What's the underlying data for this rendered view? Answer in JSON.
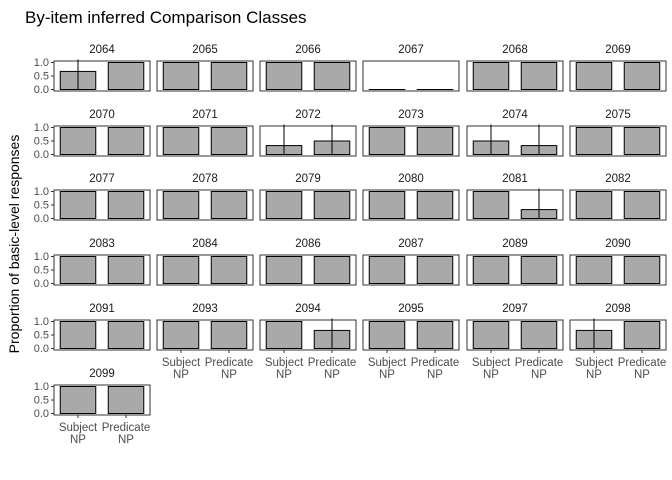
{
  "chart_data": {
    "type": "bar",
    "title": "By-item inferred Comparison Classes",
    "ylabel": "Proportion of basic-level responses",
    "categories": [
      "Subject NP",
      "Predicate NP"
    ],
    "category_lines": [
      [
        "Subject",
        "NP"
      ],
      [
        "Predicate",
        "NP"
      ]
    ],
    "ylim": [
      0,
      1
    ],
    "yticks": [
      0.0,
      0.5,
      1.0
    ],
    "ytick_labels": [
      "0.0",
      "0.5",
      "1.0"
    ],
    "grid": false,
    "bar_color": "#a9a9a9",
    "panels": [
      {
        "item": "2064",
        "values": [
          0.67,
          1.0
        ],
        "ci": [
          [
            0.0,
            1.0
          ],
          null
        ]
      },
      {
        "item": "2065",
        "values": [
          1.0,
          1.0
        ],
        "ci": [
          null,
          null
        ]
      },
      {
        "item": "2066",
        "values": [
          1.0,
          1.0
        ],
        "ci": [
          null,
          null
        ]
      },
      {
        "item": "2067",
        "values": [
          0.0,
          0.0
        ],
        "ci": [
          null,
          null
        ]
      },
      {
        "item": "2068",
        "values": [
          1.0,
          1.0
        ],
        "ci": [
          null,
          null
        ]
      },
      {
        "item": "2069",
        "values": [
          1.0,
          1.0
        ],
        "ci": [
          null,
          null
        ]
      },
      {
        "item": "2070",
        "values": [
          1.0,
          1.0
        ],
        "ci": [
          null,
          null
        ]
      },
      {
        "item": "2071",
        "values": [
          1.0,
          1.0
        ],
        "ci": [
          null,
          null
        ]
      },
      {
        "item": "2072",
        "values": [
          0.33,
          0.5
        ],
        "ci": [
          [
            0.0,
            1.0
          ],
          [
            0.0,
            1.0
          ]
        ]
      },
      {
        "item": "2073",
        "values": [
          1.0,
          1.0
        ],
        "ci": [
          null,
          null
        ]
      },
      {
        "item": "2074",
        "values": [
          0.5,
          0.33
        ],
        "ci": [
          [
            0.0,
            1.0
          ],
          [
            0.0,
            1.0
          ]
        ]
      },
      {
        "item": "2075",
        "values": [
          1.0,
          1.0
        ],
        "ci": [
          null,
          null
        ]
      },
      {
        "item": "2077",
        "values": [
          1.0,
          1.0
        ],
        "ci": [
          null,
          null
        ]
      },
      {
        "item": "2078",
        "values": [
          1.0,
          1.0
        ],
        "ci": [
          null,
          null
        ]
      },
      {
        "item": "2079",
        "values": [
          1.0,
          1.0
        ],
        "ci": [
          null,
          null
        ]
      },
      {
        "item": "2080",
        "values": [
          1.0,
          1.0
        ],
        "ci": [
          null,
          null
        ]
      },
      {
        "item": "2081",
        "values": [
          1.0,
          0.33
        ],
        "ci": [
          null,
          [
            0.0,
            1.0
          ]
        ]
      },
      {
        "item": "2082",
        "values": [
          1.0,
          1.0
        ],
        "ci": [
          null,
          null
        ]
      },
      {
        "item": "2083",
        "values": [
          1.0,
          1.0
        ],
        "ci": [
          null,
          null
        ]
      },
      {
        "item": "2084",
        "values": [
          1.0,
          1.0
        ],
        "ci": [
          null,
          null
        ]
      },
      {
        "item": "2086",
        "values": [
          1.0,
          1.0
        ],
        "ci": [
          null,
          null
        ]
      },
      {
        "item": "2087",
        "values": [
          1.0,
          1.0
        ],
        "ci": [
          null,
          null
        ]
      },
      {
        "item": "2089",
        "values": [
          1.0,
          1.0
        ],
        "ci": [
          null,
          null
        ]
      },
      {
        "item": "2090",
        "values": [
          1.0,
          1.0
        ],
        "ci": [
          null,
          null
        ]
      },
      {
        "item": "2091",
        "values": [
          1.0,
          1.0
        ],
        "ci": [
          null,
          null
        ]
      },
      {
        "item": "2093",
        "values": [
          1.0,
          1.0
        ],
        "ci": [
          null,
          null
        ]
      },
      {
        "item": "2094",
        "values": [
          1.0,
          0.67
        ],
        "ci": [
          null,
          [
            0.0,
            1.0
          ]
        ]
      },
      {
        "item": "2095",
        "values": [
          1.0,
          1.0
        ],
        "ci": [
          null,
          null
        ]
      },
      {
        "item": "2097",
        "values": [
          1.0,
          1.0
        ],
        "ci": [
          null,
          null
        ]
      },
      {
        "item": "2098",
        "values": [
          0.67,
          1.0
        ],
        "ci": [
          [
            0.0,
            1.0
          ],
          null
        ]
      },
      {
        "item": "2099",
        "values": [
          1.0,
          1.0
        ],
        "ci": [
          null,
          null
        ]
      }
    ],
    "panels_with_x_labels": [
      "2093",
      "2094",
      "2095",
      "2097",
      "2098",
      "2099"
    ]
  }
}
